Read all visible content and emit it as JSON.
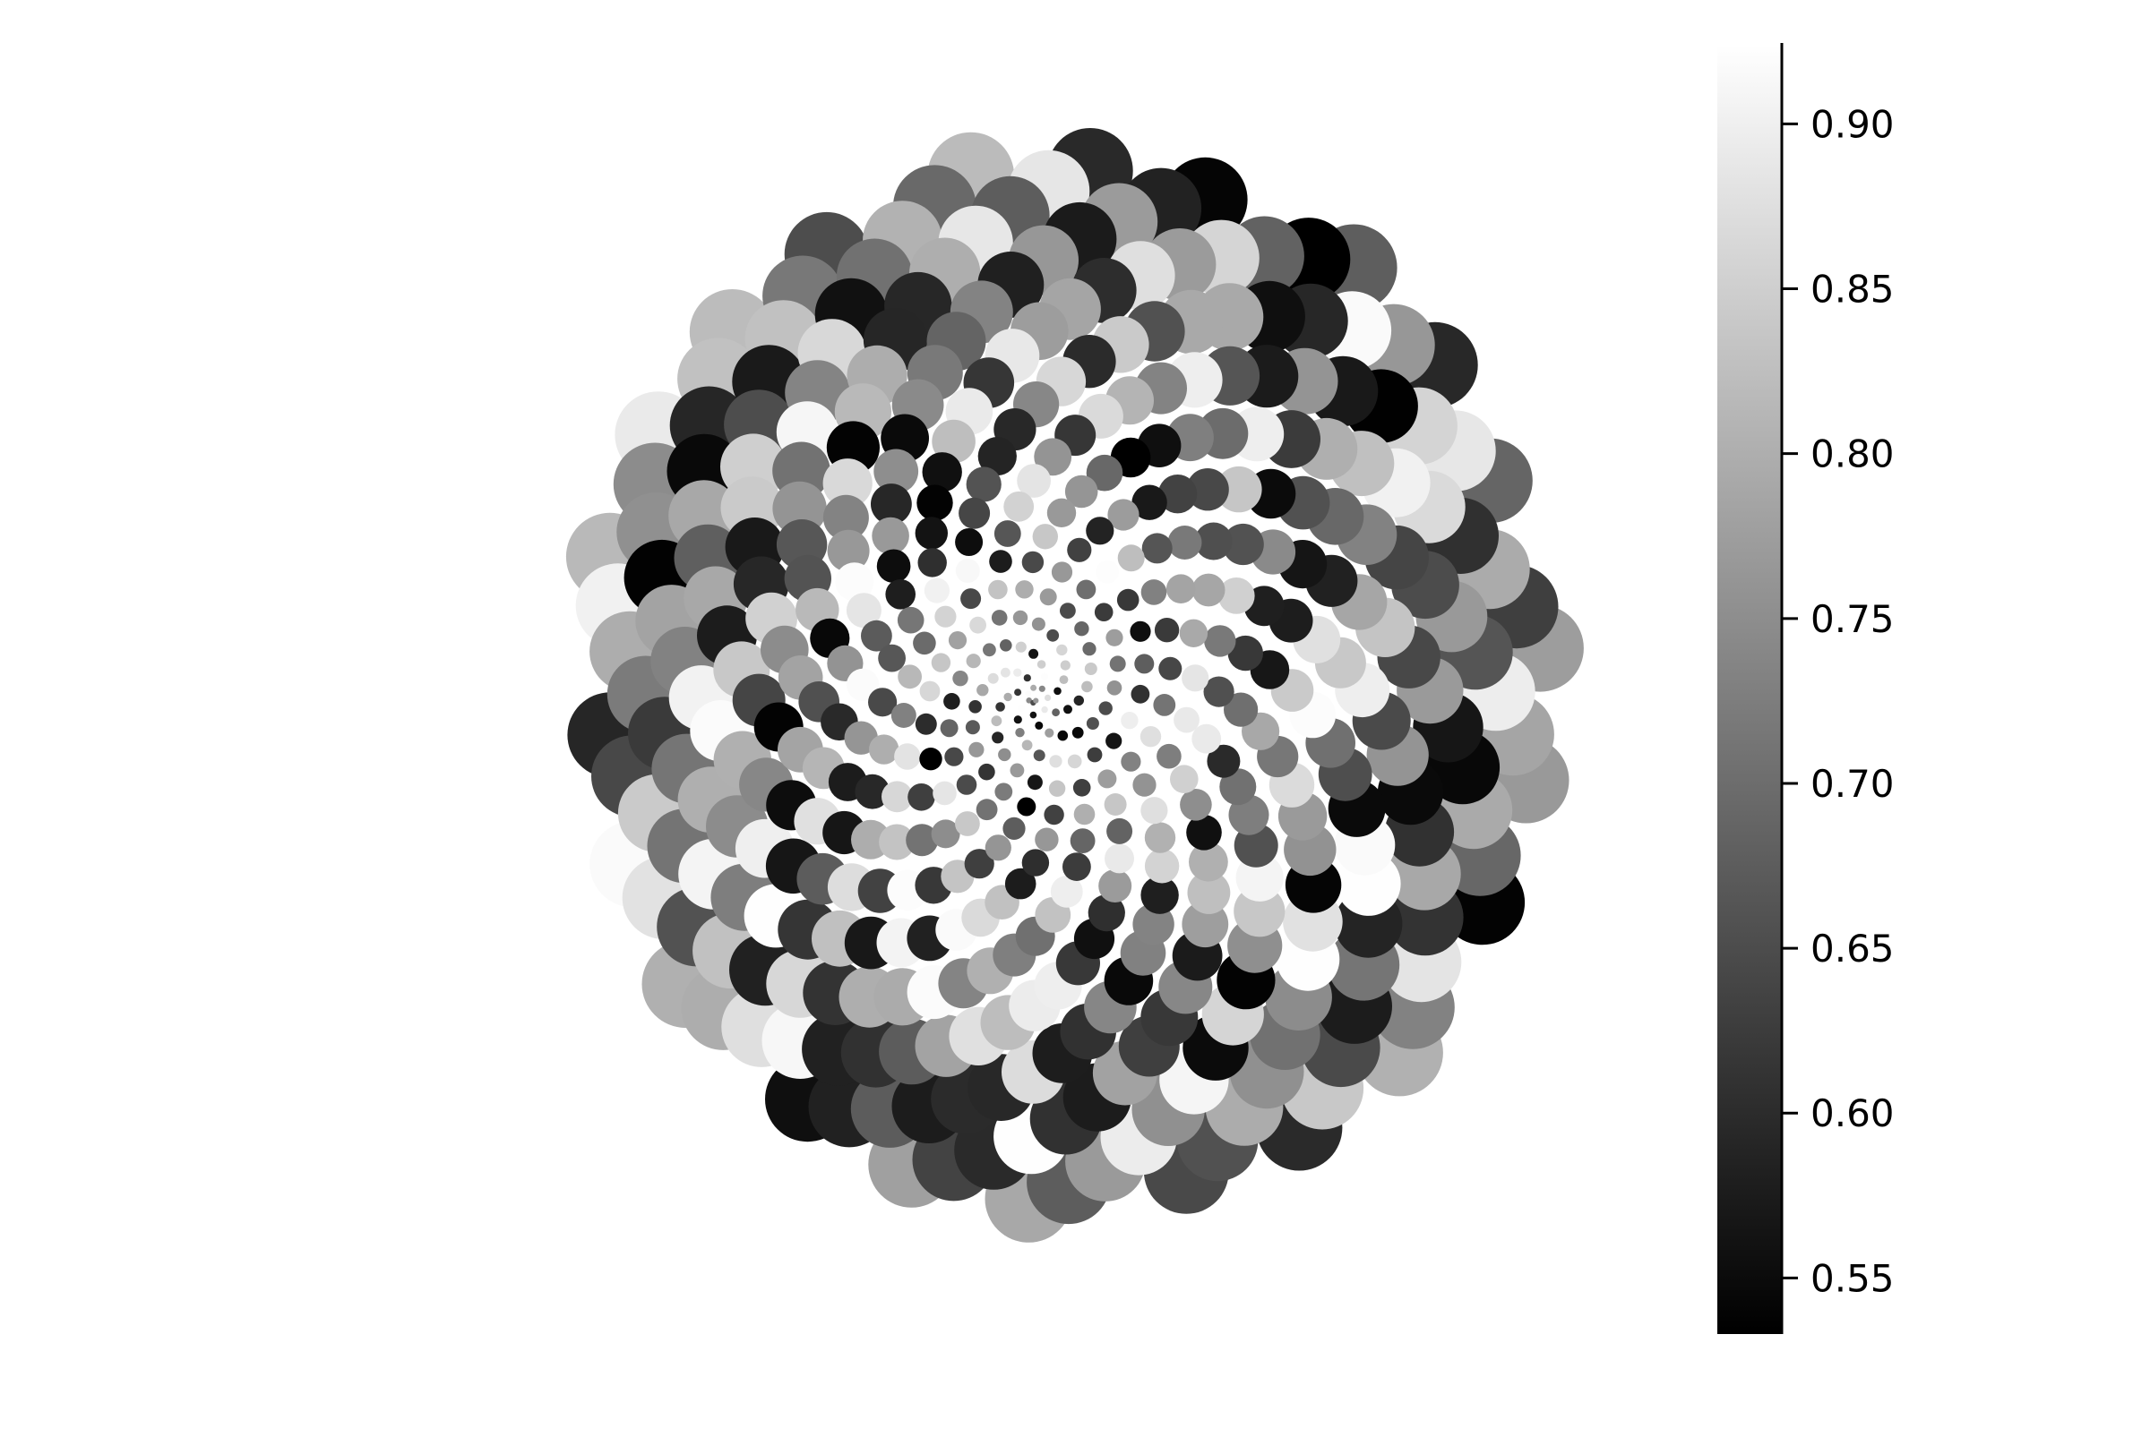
{
  "chart_data": {
    "type": "scatter",
    "title": "",
    "xlabel": "",
    "ylabel": "",
    "axes_visible": false,
    "grid": false,
    "legend": "none",
    "marker": "circle",
    "layout_note": "points arranged in a spiral funnel; marker size grows outward",
    "colormap": {
      "name": "grays",
      "range": [
        0.533,
        0.924
      ],
      "stops": [
        "#000000",
        "#ffffff"
      ],
      "ticks": [
        0.55,
        0.6,
        0.65,
        0.7,
        0.75,
        0.8,
        0.85,
        0.9
      ],
      "tick_labels": [
        "0.55",
        "0.60",
        "0.65",
        "0.70",
        "0.75",
        "0.80",
        "0.85",
        "0.90"
      ],
      "position": "right"
    },
    "n_points": 500,
    "spiral": {
      "turns_per_index": 0.137,
      "radius_max": 1.0,
      "marker_growth": "linear"
    },
    "value_sequence_seed": 7
  }
}
